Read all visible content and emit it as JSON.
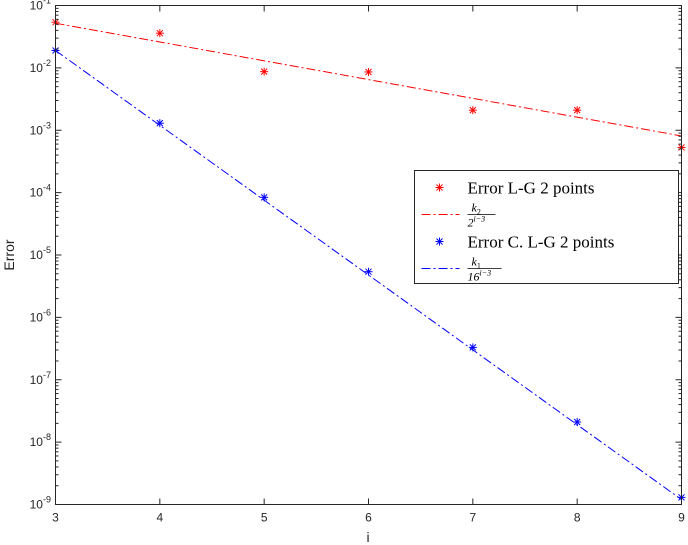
{
  "chart_data": {
    "type": "scatter",
    "title": "",
    "xlabel": "i",
    "ylabel": "Error",
    "xlim": [
      3,
      9
    ],
    "ylim": [
      1e-09,
      0.1
    ],
    "yscale": "log",
    "xticks": [
      "3",
      "4",
      "5",
      "6",
      "7",
      "8",
      "9"
    ],
    "yticks": [
      {
        "base": "10",
        "exp": "-9",
        "value": 1e-09
      },
      {
        "base": "10",
        "exp": "-8",
        "value": 1e-08
      },
      {
        "base": "10",
        "exp": "-7",
        "value": 1e-07
      },
      {
        "base": "10",
        "exp": "-6",
        "value": 1e-06
      },
      {
        "base": "10",
        "exp": "-5",
        "value": 1e-05
      },
      {
        "base": "10",
        "exp": "-4",
        "value": 0.0001
      },
      {
        "base": "10",
        "exp": "-3",
        "value": 0.001
      },
      {
        "base": "10",
        "exp": "-2",
        "value": 0.01
      },
      {
        "base": "10",
        "exp": "-1",
        "value": 0.1
      }
    ],
    "grid": false,
    "legend_position": "right",
    "series": [
      {
        "name": "Error L-G 2 points",
        "kind": "markers",
        "marker": "asterisk",
        "color": "#ff0000",
        "x": [
          3,
          4,
          5,
          6,
          7,
          8,
          9
        ],
        "y": [
          0.054,
          0.036,
          0.0087,
          0.0086,
          0.0021,
          0.0021,
          0.00053
        ]
      },
      {
        "name_num_base": "k",
        "name_num_sub": "2",
        "name_den_base": "2",
        "name_den_exp": "i−3",
        "kind": "line",
        "dash": "dashdot",
        "color": "#ff0000",
        "x": [
          3,
          9
        ],
        "y": [
          0.052,
          0.00081
        ]
      },
      {
        "name": "Error C. L-G 2 points",
        "kind": "markers",
        "marker": "asterisk",
        "color": "#0000ff",
        "x": [
          3,
          4,
          5,
          6,
          7,
          8,
          9
        ],
        "y": [
          0.019,
          0.0013,
          8.4e-05,
          5.4e-06,
          3.3e-07,
          2.1e-08,
          1.3e-09
        ]
      },
      {
        "name_num_base": "k",
        "name_num_sub": "1",
        "name_den_base": "16",
        "name_den_exp": "i−3",
        "kind": "line",
        "dash": "dashdot",
        "color": "#0000ff",
        "x": [
          3,
          9
        ],
        "y": [
          0.019,
          1.2e-09
        ]
      }
    ]
  }
}
